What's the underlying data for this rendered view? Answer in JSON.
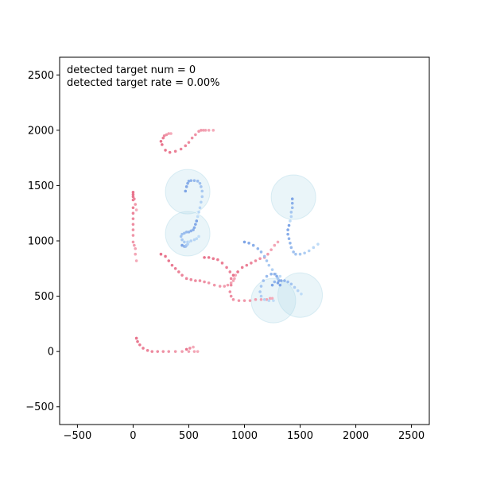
{
  "chart_data": {
    "type": "scatter",
    "title": "",
    "xlabel": "",
    "ylabel": "",
    "xlim": [
      -660,
      2660
    ],
    "ylim": [
      -660,
      2660
    ],
    "xticks": [
      -500,
      0,
      500,
      1000,
      1500,
      2000,
      2500
    ],
    "yticks": [
      -500,
      0,
      500,
      1000,
      1500,
      2000,
      2500
    ],
    "grid": false,
    "annotations": [
      "detected target num = 0",
      "detected target rate = 0.00%"
    ],
    "colors": {
      "target_dark": "#e8738c",
      "target_light": "#f4aab9",
      "agent_dark": "#7da4e6",
      "agent_light": "#bfdcf7",
      "sensor_fill": "#add8e6",
      "sensor_edge": "#add8e6"
    },
    "sensor_circles": [
      {
        "cx": 490,
        "cy": 1445,
        "r": 200
      },
      {
        "cx": 490,
        "cy": 1065,
        "r": 200
      },
      {
        "cx": 1440,
        "cy": 1395,
        "r": 200
      },
      {
        "cx": 1260,
        "cy": 460,
        "r": 200
      },
      {
        "cx": 1500,
        "cy": 510,
        "r": 200
      }
    ],
    "series": [
      {
        "role": "target",
        "x": [
          260,
          290,
          330,
          380,
          430,
          470,
          500,
          530,
          560,
          590,
          610,
          630,
          650,
          680,
          720
        ],
        "y": [
          1870,
          1820,
          1800,
          1810,
          1830,
          1860,
          1890,
          1930,
          1960,
          1990,
          2000,
          2000,
          2000,
          2000,
          2000
        ]
      },
      {
        "role": "target",
        "x": [
          250,
          270,
          280,
          300,
          320,
          340
        ],
        "y": [
          1900,
          1930,
          1950,
          1960,
          1970,
          1970
        ]
      },
      {
        "role": "target",
        "x": [
          0,
          0,
          0,
          0,
          0,
          0,
          0,
          0,
          0,
          0,
          10,
          20,
          20,
          30
        ],
        "y": [
          1440,
          1400,
          1370,
          1300,
          1250,
          1200,
          1150,
          1100,
          1050,
          990,
          960,
          930,
          880,
          820
        ]
      },
      {
        "role": "target",
        "x": [
          0,
          10,
          20,
          30
        ],
        "y": [
          1420,
          1380,
          1330,
          1280
        ]
      },
      {
        "role": "target",
        "x": [
          250,
          290,
          320,
          350,
          380,
          410,
          440,
          480,
          520,
          560,
          600,
          640,
          680,
          730,
          780,
          820,
          850,
          880,
          900,
          910,
          920
        ],
        "y": [
          880,
          860,
          820,
          780,
          750,
          720,
          690,
          660,
          650,
          640,
          640,
          630,
          620,
          600,
          590,
          590,
          600,
          620,
          640,
          660,
          690
        ]
      },
      {
        "role": "target",
        "x": [
          640,
          680,
          720,
          760,
          800,
          840,
          870,
          880,
          880,
          870,
          880,
          900,
          950,
          1000,
          1050,
          1100,
          1150,
          1200,
          1230,
          1250
        ],
        "y": [
          850,
          850,
          840,
          830,
          800,
          760,
          720,
          660,
          600,
          540,
          500,
          470,
          460,
          460,
          460,
          470,
          470,
          470,
          480,
          480
        ]
      },
      {
        "role": "target",
        "x": [
          900,
          940,
          980,
          1020,
          1060,
          1100,
          1140,
          1180,
          1210,
          1240,
          1270,
          1300
        ],
        "y": [
          690,
          720,
          760,
          780,
          800,
          820,
          840,
          850,
          880,
          920,
          960,
          990
        ]
      },
      {
        "role": "target",
        "x": [
          30,
          40,
          60,
          90,
          130,
          170,
          220,
          270,
          320,
          380,
          440,
          500,
          550,
          580
        ],
        "y": [
          120,
          90,
          60,
          30,
          10,
          0,
          0,
          0,
          0,
          0,
          0,
          0,
          0,
          0
        ]
      },
      {
        "role": "target",
        "x": [
          480,
          510,
          540
        ],
        "y": [
          20,
          30,
          40
        ]
      },
      {
        "role": "agent",
        "x": [
          470,
          480,
          490,
          500,
          520,
          550,
          580,
          600,
          610,
          620,
          620,
          610,
          600,
          590,
          580
        ],
        "y": [
          1450,
          1490,
          1520,
          1540,
          1545,
          1545,
          1540,
          1520,
          1490,
          1450,
          1400,
          1350,
          1300,
          1260,
          1220
        ]
      },
      {
        "role": "agent",
        "x": [
          570,
          560,
          550,
          540,
          520,
          500,
          480,
          460,
          440,
          430,
          440,
          460,
          490,
          520,
          550,
          570,
          590
        ],
        "y": [
          1180,
          1150,
          1120,
          1100,
          1090,
          1080,
          1080,
          1070,
          1060,
          1040,
          1010,
          990,
          990,
          1000,
          1010,
          1020,
          1040
        ]
      },
      {
        "role": "agent",
        "x": [
          440,
          460,
          470,
          480,
          490,
          500
        ],
        "y": [
          960,
          950,
          950,
          960,
          970,
          990
        ]
      },
      {
        "role": "agent",
        "x": [
          1430,
          1430,
          1430,
          1420,
          1420,
          1410
        ],
        "y": [
          1380,
          1340,
          1300,
          1260,
          1220,
          1180
        ]
      },
      {
        "role": "agent",
        "x": [
          1400,
          1390,
          1390,
          1400,
          1410,
          1420,
          1440,
          1460,
          1500,
          1540,
          1580,
          1620,
          1660
        ],
        "y": [
          1140,
          1100,
          1060,
          1020,
          980,
          940,
          900,
          880,
          880,
          890,
          910,
          940,
          970
        ]
      },
      {
        "role": "agent",
        "x": [
          1000,
          1040,
          1080,
          1120,
          1150,
          1180,
          1200,
          1220,
          1250,
          1280,
          1300
        ],
        "y": [
          990,
          980,
          960,
          930,
          900,
          860,
          820,
          780,
          740,
          700,
          660
        ]
      },
      {
        "role": "agent",
        "x": [
          1320,
          1310,
          1290,
          1270,
          1240,
          1200,
          1170,
          1150,
          1140,
          1150,
          1180,
          1220,
          1260
        ],
        "y": [
          600,
          640,
          680,
          700,
          700,
          680,
          640,
          590,
          540,
          500,
          470,
          460,
          460
        ]
      },
      {
        "role": "agent",
        "x": [
          1300,
          1330,
          1360,
          1390,
          1420,
          1450,
          1480,
          1510
        ],
        "y": [
          620,
          640,
          640,
          630,
          610,
          580,
          550,
          520
        ]
      },
      {
        "role": "agent",
        "x": [
          1250,
          1270,
          1300,
          1320
        ],
        "y": [
          600,
          630,
          660,
          680
        ]
      }
    ]
  }
}
